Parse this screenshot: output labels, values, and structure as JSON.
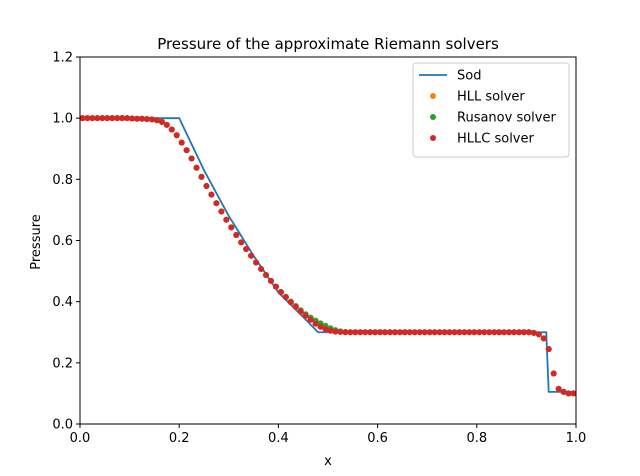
{
  "chart_data": {
    "type": "line",
    "title": "Pressure of the approximate Riemann solvers",
    "xlabel": "x",
    "ylabel": "Pressure",
    "xlim": [
      0,
      1
    ],
    "ylim": [
      0,
      1.2
    ],
    "xticks": [
      "0.0",
      "0.2",
      "0.4",
      "0.6",
      "0.8",
      "1.0"
    ],
    "yticks": [
      "0.0",
      "0.2",
      "0.4",
      "0.6",
      "0.8",
      "1.0",
      "1.2"
    ],
    "grid": false,
    "legend_position": "top-right",
    "series": [
      {
        "name": "Sod",
        "style": "line",
        "color": "#1f77b4",
        "points": [
          [
            0.0,
            1.0
          ],
          [
            0.2,
            1.0
          ],
          [
            0.25,
            0.83
          ],
          [
            0.3,
            0.68
          ],
          [
            0.35,
            0.55
          ],
          [
            0.4,
            0.43
          ],
          [
            0.45,
            0.35
          ],
          [
            0.48,
            0.3
          ],
          [
            0.94,
            0.3
          ],
          [
            0.945,
            0.105
          ],
          [
            1.0,
            0.105
          ]
        ]
      },
      {
        "name": "HLL solver",
        "style": "markers",
        "color": "#ff7f0e",
        "points": [
          [
            0.005,
            1.0
          ],
          [
            0.015,
            1.0
          ],
          [
            0.025,
            1.0
          ],
          [
            0.035,
            1.0
          ],
          [
            0.045,
            1.0
          ],
          [
            0.055,
            1.0
          ],
          [
            0.065,
            1.0
          ],
          [
            0.075,
            1.0
          ],
          [
            0.085,
            1.0
          ],
          [
            0.095,
            1.0
          ],
          [
            0.105,
            0.999
          ],
          [
            0.115,
            0.998
          ],
          [
            0.125,
            0.998
          ],
          [
            0.135,
            0.997
          ],
          [
            0.145,
            0.996
          ],
          [
            0.155,
            0.993
          ],
          [
            0.165,
            0.988
          ],
          [
            0.175,
            0.978
          ],
          [
            0.185,
            0.963
          ],
          [
            0.195,
            0.944
          ],
          [
            0.205,
            0.92
          ],
          [
            0.215,
            0.895
          ],
          [
            0.225,
            0.868
          ],
          [
            0.235,
            0.838
          ],
          [
            0.245,
            0.808
          ],
          [
            0.255,
            0.778
          ],
          [
            0.265,
            0.75
          ],
          [
            0.275,
            0.722
          ],
          [
            0.285,
            0.695
          ],
          [
            0.295,
            0.668
          ],
          [
            0.305,
            0.643
          ],
          [
            0.315,
            0.618
          ],
          [
            0.325,
            0.594
          ],
          [
            0.335,
            0.572
          ],
          [
            0.345,
            0.55
          ],
          [
            0.355,
            0.528
          ],
          [
            0.365,
            0.507
          ],
          [
            0.375,
            0.487
          ],
          [
            0.385,
            0.468
          ],
          [
            0.395,
            0.449
          ],
          [
            0.405,
            0.431
          ],
          [
            0.415,
            0.415
          ],
          [
            0.425,
            0.398
          ],
          [
            0.435,
            0.383
          ],
          [
            0.445,
            0.368
          ],
          [
            0.455,
            0.354
          ],
          [
            0.465,
            0.341
          ],
          [
            0.475,
            0.328
          ],
          [
            0.485,
            0.318
          ],
          [
            0.495,
            0.31
          ],
          [
            0.505,
            0.305
          ],
          [
            0.515,
            0.302
          ],
          [
            0.525,
            0.301
          ],
          [
            0.535,
            0.3
          ],
          [
            0.545,
            0.3
          ],
          [
            0.555,
            0.3
          ],
          [
            0.565,
            0.3
          ],
          [
            0.575,
            0.3
          ],
          [
            0.585,
            0.3
          ],
          [
            0.595,
            0.3
          ],
          [
            0.605,
            0.3
          ],
          [
            0.615,
            0.3
          ],
          [
            0.625,
            0.3
          ],
          [
            0.635,
            0.3
          ],
          [
            0.645,
            0.3
          ],
          [
            0.655,
            0.3
          ],
          [
            0.665,
            0.3
          ],
          [
            0.675,
            0.3
          ],
          [
            0.685,
            0.3
          ],
          [
            0.695,
            0.3
          ],
          [
            0.705,
            0.3
          ],
          [
            0.715,
            0.3
          ],
          [
            0.725,
            0.3
          ],
          [
            0.735,
            0.3
          ],
          [
            0.745,
            0.3
          ],
          [
            0.755,
            0.3
          ],
          [
            0.765,
            0.3
          ],
          [
            0.775,
            0.3
          ],
          [
            0.785,
            0.3
          ],
          [
            0.795,
            0.3
          ],
          [
            0.805,
            0.3
          ],
          [
            0.815,
            0.3
          ],
          [
            0.825,
            0.3
          ],
          [
            0.835,
            0.3
          ],
          [
            0.845,
            0.3
          ],
          [
            0.855,
            0.3
          ],
          [
            0.865,
            0.3
          ],
          [
            0.875,
            0.3
          ],
          [
            0.885,
            0.3
          ],
          [
            0.895,
            0.3
          ],
          [
            0.905,
            0.3
          ],
          [
            0.915,
            0.298
          ],
          [
            0.925,
            0.293
          ],
          [
            0.935,
            0.28
          ],
          [
            0.945,
            0.245
          ],
          [
            0.955,
            0.165
          ],
          [
            0.965,
            0.115
          ],
          [
            0.975,
            0.105
          ],
          [
            0.985,
            0.1
          ],
          [
            0.995,
            0.1
          ]
        ]
      },
      {
        "name": "Rusanov solver",
        "style": "markers",
        "color": "#2ca02c",
        "points": [
          [
            0.005,
            1.0
          ],
          [
            0.015,
            1.0
          ],
          [
            0.025,
            1.0
          ],
          [
            0.035,
            1.0
          ],
          [
            0.045,
            1.0
          ],
          [
            0.055,
            1.0
          ],
          [
            0.065,
            1.0
          ],
          [
            0.075,
            1.0
          ],
          [
            0.085,
            1.0
          ],
          [
            0.095,
            1.0
          ],
          [
            0.105,
            0.999
          ],
          [
            0.115,
            0.998
          ],
          [
            0.125,
            0.998
          ],
          [
            0.135,
            0.997
          ],
          [
            0.145,
            0.996
          ],
          [
            0.155,
            0.993
          ],
          [
            0.165,
            0.988
          ],
          [
            0.175,
            0.978
          ],
          [
            0.185,
            0.963
          ],
          [
            0.195,
            0.944
          ],
          [
            0.205,
            0.92
          ],
          [
            0.215,
            0.895
          ],
          [
            0.225,
            0.868
          ],
          [
            0.235,
            0.838
          ],
          [
            0.245,
            0.808
          ],
          [
            0.255,
            0.778
          ],
          [
            0.265,
            0.75
          ],
          [
            0.275,
            0.722
          ],
          [
            0.285,
            0.695
          ],
          [
            0.295,
            0.668
          ],
          [
            0.305,
            0.643
          ],
          [
            0.315,
            0.618
          ],
          [
            0.325,
            0.594
          ],
          [
            0.335,
            0.572
          ],
          [
            0.345,
            0.55
          ],
          [
            0.355,
            0.528
          ],
          [
            0.365,
            0.507
          ],
          [
            0.375,
            0.487
          ],
          [
            0.385,
            0.468
          ],
          [
            0.395,
            0.449
          ],
          [
            0.405,
            0.432
          ],
          [
            0.415,
            0.416
          ],
          [
            0.425,
            0.4
          ],
          [
            0.435,
            0.386
          ],
          [
            0.445,
            0.372
          ],
          [
            0.455,
            0.359
          ],
          [
            0.465,
            0.348
          ],
          [
            0.475,
            0.338
          ],
          [
            0.485,
            0.329
          ],
          [
            0.495,
            0.321
          ],
          [
            0.505,
            0.313
          ],
          [
            0.515,
            0.307
          ],
          [
            0.525,
            0.303
          ],
          [
            0.535,
            0.301
          ],
          [
            0.545,
            0.3
          ],
          [
            0.555,
            0.3
          ],
          [
            0.565,
            0.3
          ],
          [
            0.575,
            0.3
          ],
          [
            0.585,
            0.3
          ],
          [
            0.595,
            0.3
          ],
          [
            0.605,
            0.3
          ],
          [
            0.615,
            0.3
          ],
          [
            0.625,
            0.3
          ],
          [
            0.635,
            0.3
          ],
          [
            0.645,
            0.3
          ],
          [
            0.655,
            0.3
          ],
          [
            0.665,
            0.3
          ],
          [
            0.675,
            0.3
          ],
          [
            0.685,
            0.3
          ],
          [
            0.695,
            0.3
          ],
          [
            0.705,
            0.3
          ],
          [
            0.715,
            0.3
          ],
          [
            0.725,
            0.3
          ],
          [
            0.735,
            0.3
          ],
          [
            0.745,
            0.3
          ],
          [
            0.755,
            0.3
          ],
          [
            0.765,
            0.3
          ],
          [
            0.775,
            0.3
          ],
          [
            0.785,
            0.3
          ],
          [
            0.795,
            0.3
          ],
          [
            0.805,
            0.3
          ],
          [
            0.815,
            0.3
          ],
          [
            0.825,
            0.3
          ],
          [
            0.835,
            0.3
          ],
          [
            0.845,
            0.3
          ],
          [
            0.855,
            0.3
          ],
          [
            0.865,
            0.3
          ],
          [
            0.875,
            0.3
          ],
          [
            0.885,
            0.3
          ],
          [
            0.895,
            0.3
          ],
          [
            0.905,
            0.3
          ],
          [
            0.915,
            0.298
          ],
          [
            0.925,
            0.293
          ],
          [
            0.935,
            0.28
          ],
          [
            0.945,
            0.245
          ],
          [
            0.955,
            0.165
          ],
          [
            0.965,
            0.115
          ],
          [
            0.975,
            0.105
          ],
          [
            0.985,
            0.1
          ],
          [
            0.995,
            0.1
          ]
        ]
      },
      {
        "name": "HLLC solver",
        "style": "markers",
        "color": "#d62728",
        "points": [
          [
            0.005,
            1.0
          ],
          [
            0.015,
            1.0
          ],
          [
            0.025,
            1.0
          ],
          [
            0.035,
            1.0
          ],
          [
            0.045,
            1.0
          ],
          [
            0.055,
            1.0
          ],
          [
            0.065,
            1.0
          ],
          [
            0.075,
            1.0
          ],
          [
            0.085,
            1.0
          ],
          [
            0.095,
            1.0
          ],
          [
            0.105,
            0.999
          ],
          [
            0.115,
            0.998
          ],
          [
            0.125,
            0.998
          ],
          [
            0.135,
            0.997
          ],
          [
            0.145,
            0.996
          ],
          [
            0.155,
            0.993
          ],
          [
            0.165,
            0.988
          ],
          [
            0.175,
            0.978
          ],
          [
            0.185,
            0.963
          ],
          [
            0.195,
            0.944
          ],
          [
            0.205,
            0.92
          ],
          [
            0.215,
            0.895
          ],
          [
            0.225,
            0.868
          ],
          [
            0.235,
            0.838
          ],
          [
            0.245,
            0.808
          ],
          [
            0.255,
            0.778
          ],
          [
            0.265,
            0.75
          ],
          [
            0.275,
            0.722
          ],
          [
            0.285,
            0.695
          ],
          [
            0.295,
            0.668
          ],
          [
            0.305,
            0.643
          ],
          [
            0.315,
            0.618
          ],
          [
            0.325,
            0.594
          ],
          [
            0.335,
            0.572
          ],
          [
            0.345,
            0.55
          ],
          [
            0.355,
            0.528
          ],
          [
            0.365,
            0.507
          ],
          [
            0.375,
            0.487
          ],
          [
            0.385,
            0.468
          ],
          [
            0.395,
            0.449
          ],
          [
            0.405,
            0.431
          ],
          [
            0.415,
            0.415
          ],
          [
            0.425,
            0.398
          ],
          [
            0.435,
            0.383
          ],
          [
            0.445,
            0.368
          ],
          [
            0.455,
            0.354
          ],
          [
            0.465,
            0.341
          ],
          [
            0.475,
            0.328
          ],
          [
            0.485,
            0.318
          ],
          [
            0.495,
            0.31
          ],
          [
            0.505,
            0.305
          ],
          [
            0.515,
            0.302
          ],
          [
            0.525,
            0.301
          ],
          [
            0.535,
            0.3
          ],
          [
            0.545,
            0.3
          ],
          [
            0.555,
            0.3
          ],
          [
            0.565,
            0.3
          ],
          [
            0.575,
            0.3
          ],
          [
            0.585,
            0.3
          ],
          [
            0.595,
            0.3
          ],
          [
            0.605,
            0.3
          ],
          [
            0.615,
            0.3
          ],
          [
            0.625,
            0.3
          ],
          [
            0.635,
            0.3
          ],
          [
            0.645,
            0.3
          ],
          [
            0.655,
            0.3
          ],
          [
            0.665,
            0.3
          ],
          [
            0.675,
            0.3
          ],
          [
            0.685,
            0.3
          ],
          [
            0.695,
            0.3
          ],
          [
            0.705,
            0.3
          ],
          [
            0.715,
            0.3
          ],
          [
            0.725,
            0.3
          ],
          [
            0.735,
            0.3
          ],
          [
            0.745,
            0.3
          ],
          [
            0.755,
            0.3
          ],
          [
            0.765,
            0.3
          ],
          [
            0.775,
            0.3
          ],
          [
            0.785,
            0.3
          ],
          [
            0.795,
            0.3
          ],
          [
            0.805,
            0.3
          ],
          [
            0.815,
            0.3
          ],
          [
            0.825,
            0.3
          ],
          [
            0.835,
            0.3
          ],
          [
            0.845,
            0.3
          ],
          [
            0.855,
            0.3
          ],
          [
            0.865,
            0.3
          ],
          [
            0.875,
            0.3
          ],
          [
            0.885,
            0.3
          ],
          [
            0.895,
            0.3
          ],
          [
            0.905,
            0.3
          ],
          [
            0.915,
            0.298
          ],
          [
            0.925,
            0.293
          ],
          [
            0.935,
            0.28
          ],
          [
            0.945,
            0.245
          ],
          [
            0.955,
            0.165
          ],
          [
            0.965,
            0.115
          ],
          [
            0.975,
            0.105
          ],
          [
            0.985,
            0.1
          ],
          [
            0.995,
            0.1
          ]
        ]
      }
    ]
  }
}
